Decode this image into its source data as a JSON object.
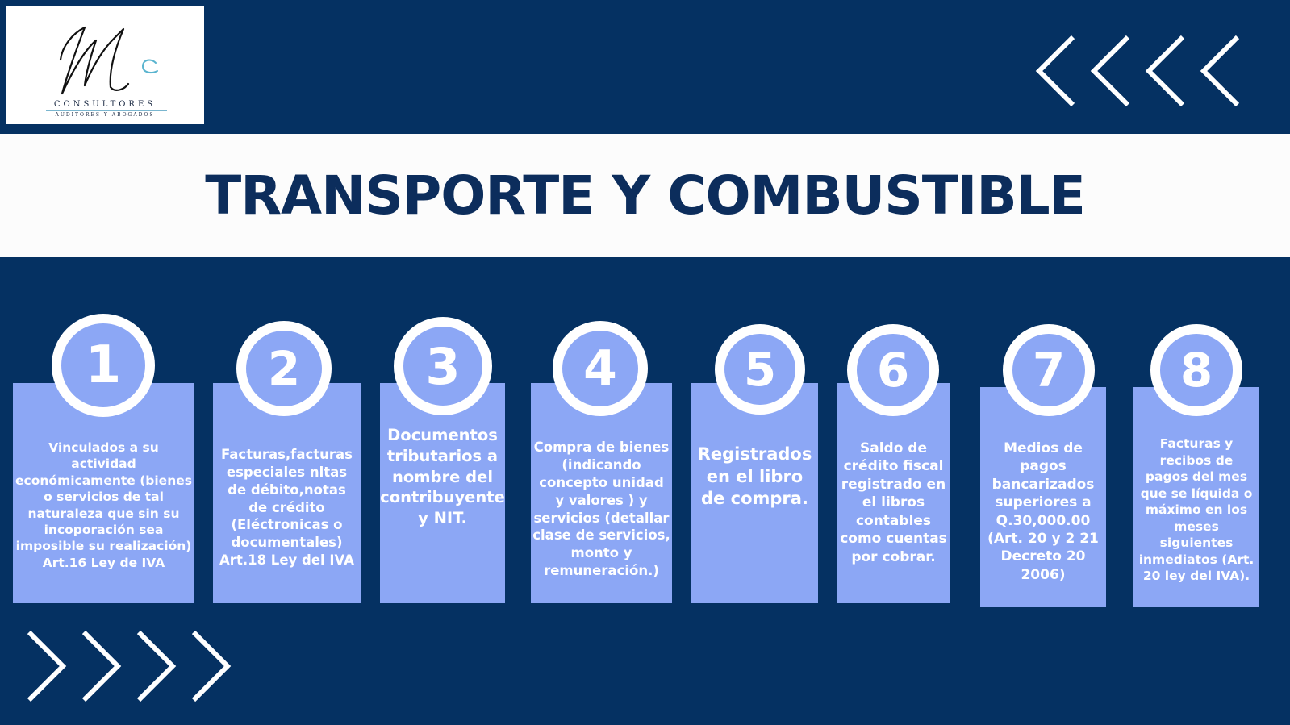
{
  "logo": {
    "company": "CONSULTORES",
    "subtitle": "AUDITORES Y ABOGADOS"
  },
  "title": "TRANSPORTE Y COMBUSTIBLE",
  "colors": {
    "background": "#053162",
    "band": "#fcfcfc",
    "title": "#0c2d5c",
    "card": "#8ca7f5",
    "accent_logo": "#5ab4cf"
  },
  "steps": [
    {
      "number": "1",
      "text": "Vinculados a su actividad económicamente (bienes o servicios de tal naturaleza que sin su incoporación sea imposible su realización) Art.16 Ley de IVA"
    },
    {
      "number": "2",
      "text": "Facturas,facturas especiales nltas de débito,notas de crédito (Eléctronicas o documentales) Art.18 Ley del IVA"
    },
    {
      "number": "3",
      "text": "Documentos tributarios a nombre del contribuyente y NIT."
    },
    {
      "number": "4",
      "text": "Compra de bienes (indicando concepto unidad y valores ) y servicios (detallar clase de servicios, monto y remuneración.)"
    },
    {
      "number": "5",
      "text": "Registrados en el libro de compra."
    },
    {
      "number": "6",
      "text": "Saldo de crédito fiscal registrado en el libros contables como cuentas por cobrar."
    },
    {
      "number": "7",
      "text": "Medios de pagos bancarizados superiores a Q.30,000.00 (Art. 20 y 2 21 Decreto 20 2006)"
    },
    {
      "number": "8",
      "text": "Facturas y recibos de pagos del mes que se líquida o máximo en los meses siguientes inmediatos (Art. 20 ley del IVA)."
    }
  ]
}
